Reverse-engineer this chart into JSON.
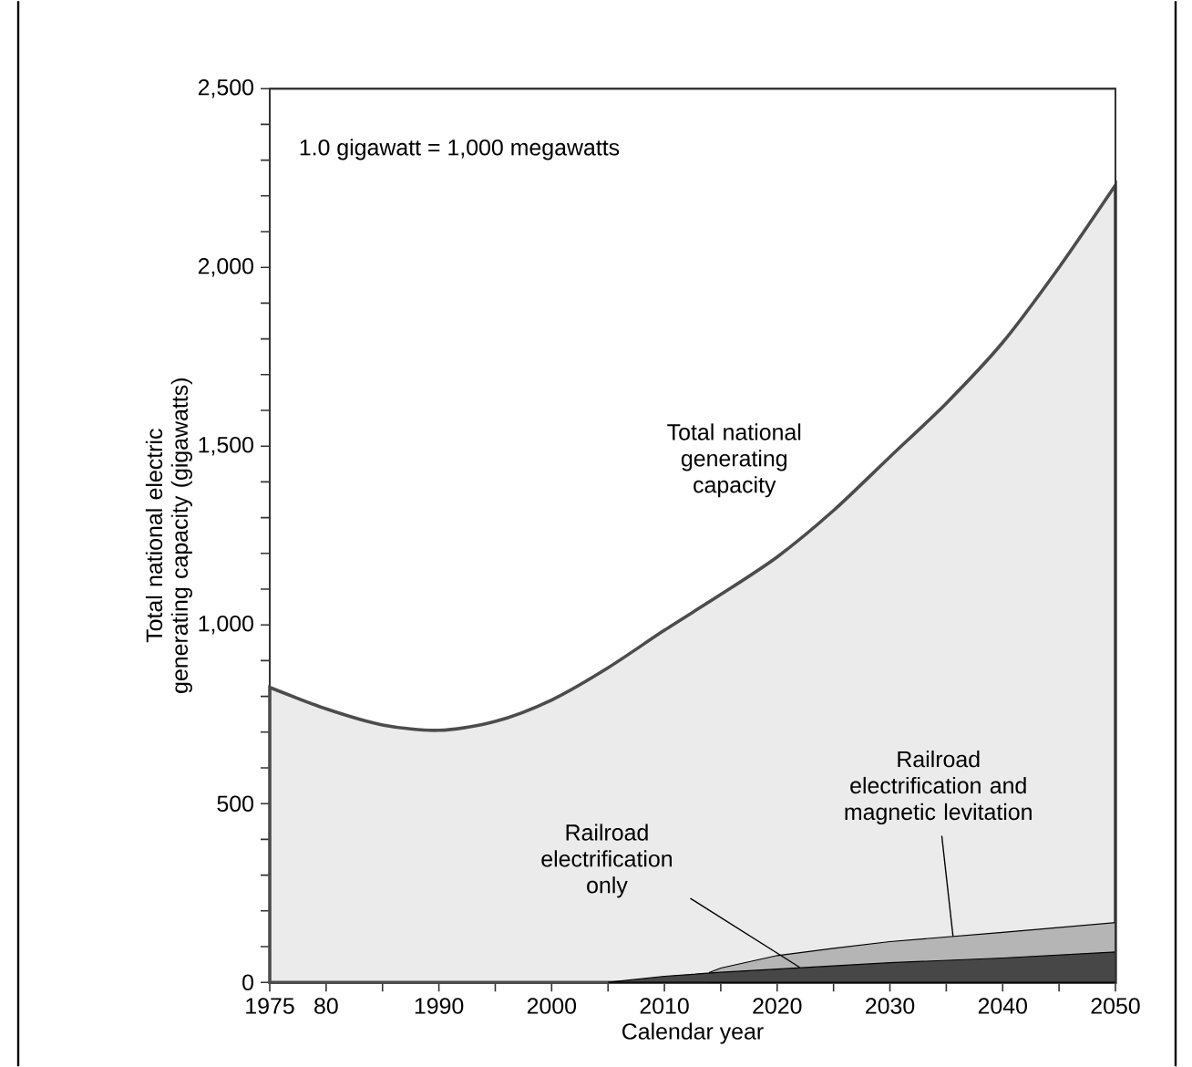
{
  "chart_data": {
    "type": "area",
    "xlabel": "Calendar year",
    "ylabel": "Total national electric generating capacity (gigawatts)",
    "annotations": [
      "1.0 gigawatt = 1,000 megawatts"
    ],
    "xlim": [
      1975,
      2050
    ],
    "xticks": [
      1975,
      {
        "value": 1980,
        "label": "80"
      },
      {
        "value": 1985,
        "label": null
      },
      1990,
      {
        "value": 1995,
        "label": null
      },
      2000,
      {
        "value": 2005,
        "label": null
      },
      2010,
      {
        "value": 2015,
        "label": null
      },
      2020,
      {
        "value": 2025,
        "label": null
      },
      2030,
      {
        "value": 2035,
        "label": null
      },
      2040,
      {
        "value": 2045,
        "label": null
      },
      2050
    ],
    "ylim": [
      0,
      2500
    ],
    "yticks": [
      0,
      {
        "value": 100,
        "label": null
      },
      {
        "value": 200,
        "label": null
      },
      {
        "value": 300,
        "label": null
      },
      {
        "value": 400,
        "label": null
      },
      500,
      {
        "value": 600,
        "label": null
      },
      {
        "value": 700,
        "label": null
      },
      {
        "value": 800,
        "label": null
      },
      {
        "value": 900,
        "label": null
      },
      {
        "value": 1000,
        "label": "1,000"
      },
      {
        "value": 1100,
        "label": null
      },
      {
        "value": 1200,
        "label": null
      },
      {
        "value": 1300,
        "label": null
      },
      {
        "value": 1400,
        "label": null
      },
      {
        "value": 1500,
        "label": "1,500"
      },
      {
        "value": 1600,
        "label": null
      },
      {
        "value": 1700,
        "label": null
      },
      {
        "value": 1800,
        "label": null
      },
      {
        "value": 1900,
        "label": null
      },
      {
        "value": 2000,
        "label": "2,000"
      },
      {
        "value": 2100,
        "label": null
      },
      {
        "value": 2200,
        "label": null
      },
      {
        "value": 2300,
        "label": null
      },
      {
        "value": 2400,
        "label": null
      },
      {
        "value": 2500,
        "label": "2,500"
      }
    ],
    "grid": false,
    "series": [
      {
        "name": "Total national generating capacity",
        "color": "#ebebeb",
        "x": [
          1975,
          1980,
          1985,
          1990,
          1995,
          2000,
          2005,
          2010,
          2015,
          2020,
          2025,
          2030,
          2035,
          2040,
          2045,
          2050
        ],
        "values": [
          825,
          765,
          720,
          705,
          730,
          790,
          880,
          985,
          1085,
          1190,
          1320,
          1470,
          1620,
          1790,
          2000,
          2230
        ]
      },
      {
        "name": "Railroad electrification and magnetic levitation",
        "color": "#b5b5b5",
        "x": [
          2014,
          2015,
          2020,
          2025,
          2030,
          2040,
          2050
        ],
        "values": [
          28,
          40,
          75,
          95,
          114,
          140,
          167
        ]
      },
      {
        "name": "Railroad electrification only",
        "color": "#474747",
        "x": [
          2005,
          2010,
          2015,
          2020,
          2025,
          2030,
          2040,
          2050
        ],
        "values": [
          0,
          17,
          28,
          37,
          46,
          55,
          68,
          85
        ]
      }
    ]
  }
}
